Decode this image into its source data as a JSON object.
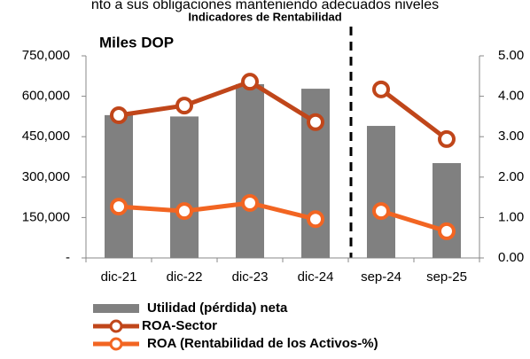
{
  "header_fragment": "nto a sus obligaciones manteniendo adecuados niveles",
  "chart_data": {
    "type": "combo",
    "title": "Indicadores de Rentabilidad",
    "annotation": "Miles DOP",
    "categories": [
      "dic-21",
      "dic-22",
      "dic-23",
      "dic-24",
      "sep-24",
      "sep-25"
    ],
    "series": [
      {
        "name": "Utilidad (pérdida) neta",
        "type": "bar",
        "color": "#808080",
        "values": [
          530000,
          525000,
          645000,
          628000,
          490000,
          352000
        ]
      },
      {
        "name": "ROA-Sector",
        "type": "line",
        "axis": "y2",
        "color": "#c0461a",
        "values": [
          3.53,
          3.77,
          4.36,
          3.36,
          4.17,
          2.94
        ]
      },
      {
        "name": "ROA (Rentabilidad de los Activos-%)",
        "type": "line",
        "axis": "y2",
        "color": "#f26522",
        "values": [
          1.27,
          1.16,
          1.36,
          0.96,
          1.16,
          0.66
        ]
      }
    ],
    "ylim": [
      0,
      750000
    ],
    "yticks": [
      {
        "value": 0,
        "label": "-"
      },
      {
        "value": 150000,
        "label": "150,000"
      },
      {
        "value": 300000,
        "label": "300,000"
      },
      {
        "value": 450000,
        "label": "450,000"
      },
      {
        "value": 600000,
        "label": "600,000"
      },
      {
        "value": 750000,
        "label": "750,000"
      }
    ],
    "y2lim": [
      0,
      5
    ],
    "y2ticks": [
      {
        "value": 0,
        "label": "0.00"
      },
      {
        "value": 1,
        "label": "1.00"
      },
      {
        "value": 2,
        "label": "2.00"
      },
      {
        "value": 3,
        "label": "3.00"
      },
      {
        "value": 4,
        "label": "4.00"
      },
      {
        "value": 5,
        "label": "5.00"
      }
    ]
  }
}
